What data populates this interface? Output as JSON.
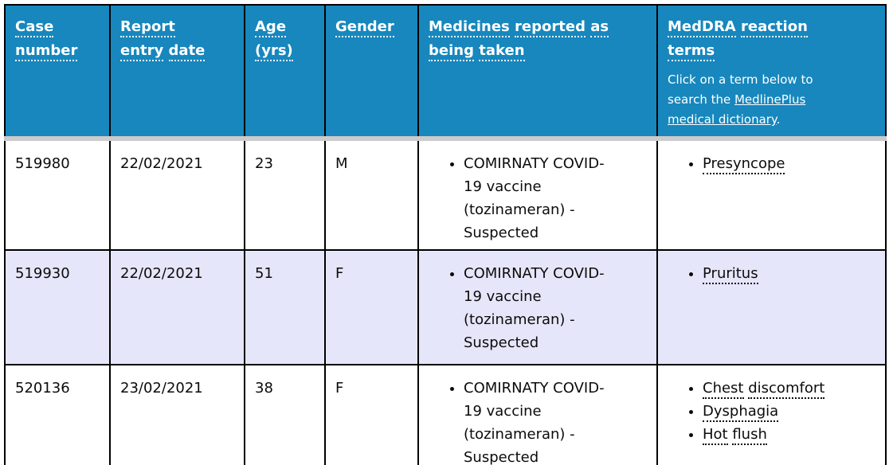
{
  "colors": {
    "header_bg": "#1787bd",
    "header_text": "#ffffff",
    "alt_row_bg": "#e6e6fa",
    "separator_band": "#cbcbcb",
    "grid_border": "#000000",
    "body_text": "#0b0b0b"
  },
  "table": {
    "columns": [
      {
        "label": "Case number"
      },
      {
        "label": "Report entry date"
      },
      {
        "label": "Age (yrs)"
      },
      {
        "label": "Gender"
      },
      {
        "label": "Medicines reported as being taken"
      },
      {
        "label": "MedDRA reaction terms"
      }
    ],
    "meddra_note": {
      "prefix": "Click on a term below to search the ",
      "link_text": "MedlinePlus medical dictionary",
      "suffix": "."
    },
    "rows": [
      {
        "case_number": "519980",
        "report_entry_date": "22/02/2021",
        "age": "23",
        "gender": "M",
        "medicines": [
          "COMIRNATY COVID-19 vaccine (tozinameran) - Suspected"
        ],
        "reactions": [
          "Presyncope"
        ]
      },
      {
        "case_number": "519930",
        "report_entry_date": "22/02/2021",
        "age": "51",
        "gender": "F",
        "medicines": [
          "COMIRNATY COVID-19 vaccine (tozinameran) - Suspected"
        ],
        "reactions": [
          "Pruritus"
        ]
      },
      {
        "case_number": "520136",
        "report_entry_date": "23/02/2021",
        "age": "38",
        "gender": "F",
        "medicines": [
          "COMIRNATY COVID-19 vaccine (tozinameran) - Suspected"
        ],
        "reactions": [
          "Chest discomfort",
          "Dysphagia",
          "Hot flush"
        ]
      }
    ]
  }
}
